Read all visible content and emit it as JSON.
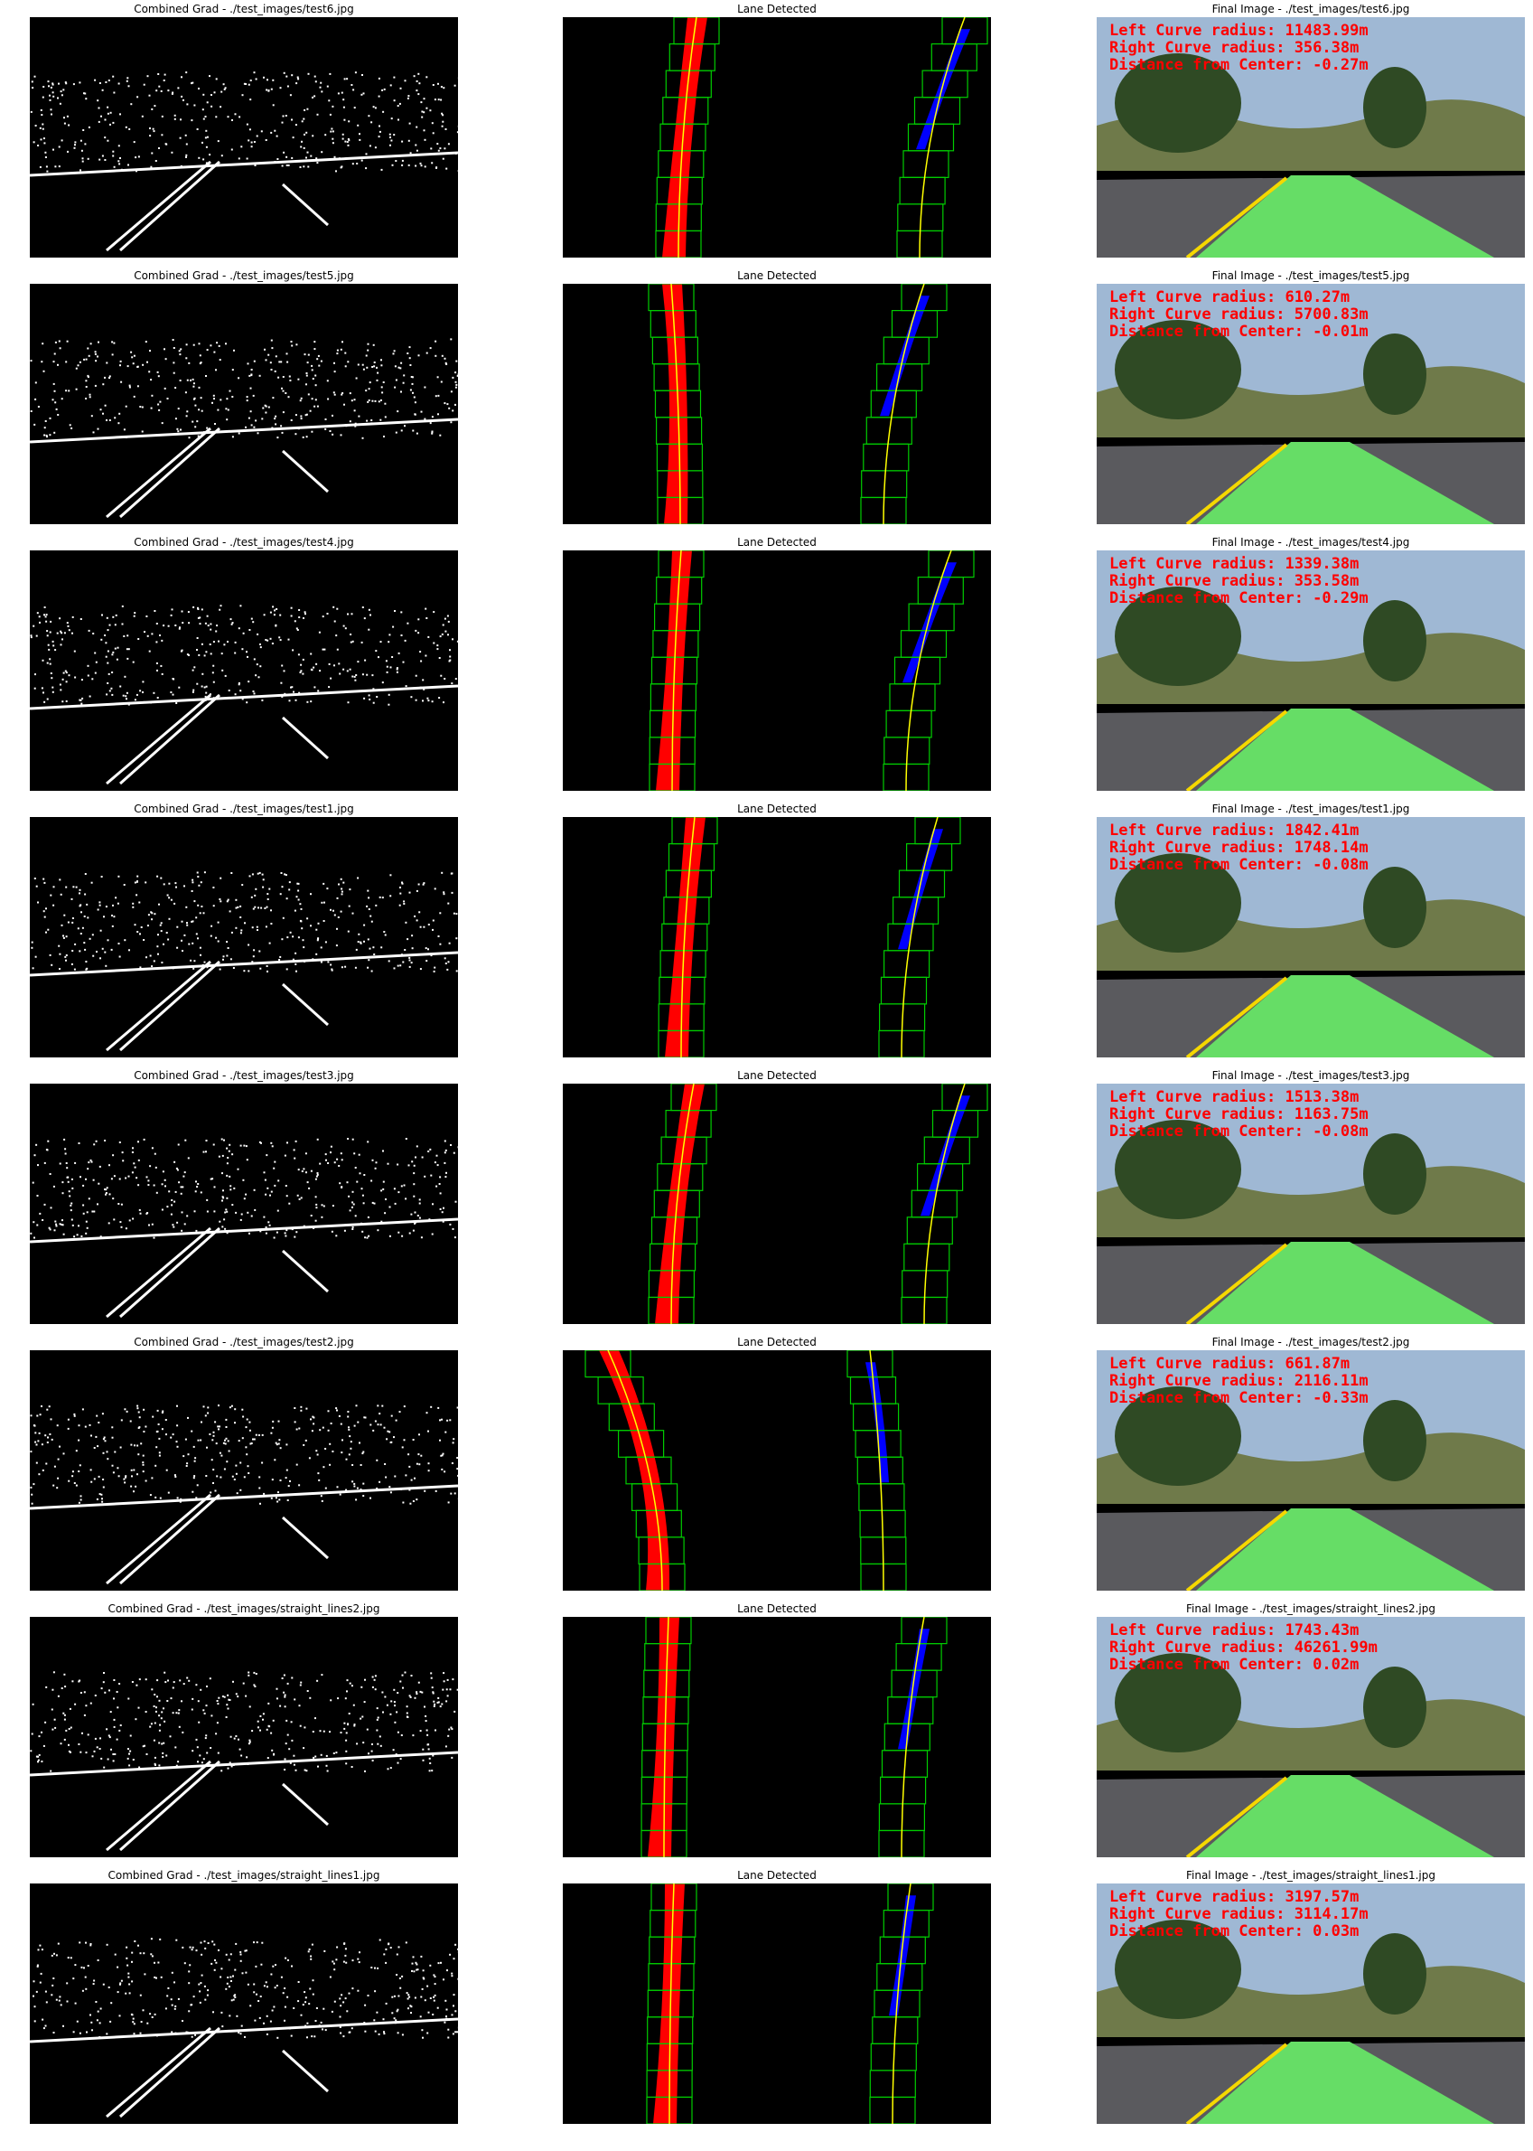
{
  "rows": [
    {
      "grad_title": "Combined Grad - ./test_images/test6.jpg",
      "lane_title": "Lane Detected",
      "final_title": "Final Image - ./test_images/test6.jpg",
      "left_radius": "Left Curve radius: 11483.99m",
      "right_radius": "Right Curve radius: 356.38m",
      "distance": "Distance from Center: -0.27m"
    },
    {
      "grad_title": "Combined Grad - ./test_images/test5.jpg",
      "lane_title": "Lane Detected",
      "final_title": "Final Image - ./test_images/test5.jpg",
      "left_radius": "Left Curve radius: 610.27m",
      "right_radius": "Right Curve radius: 5700.83m",
      "distance": "Distance from Center: -0.01m"
    },
    {
      "grad_title": "Combined Grad - ./test_images/test4.jpg",
      "lane_title": "Lane Detected",
      "final_title": "Final Image - ./test_images/test4.jpg",
      "left_radius": "Left Curve radius: 1339.38m",
      "right_radius": "Right Curve radius: 353.58m",
      "distance": "Distance from Center: -0.29m"
    },
    {
      "grad_title": "Combined Grad - ./test_images/test1.jpg",
      "lane_title": "Lane Detected",
      "final_title": "Final Image - ./test_images/test1.jpg",
      "left_radius": "Left Curve radius: 1842.41m",
      "right_radius": "Right Curve radius: 1748.14m",
      "distance": "Distance from Center: -0.08m"
    },
    {
      "grad_title": "Combined Grad - ./test_images/test3.jpg",
      "lane_title": "Lane Detected",
      "final_title": "Final Image - ./test_images/test3.jpg",
      "left_radius": "Left Curve radius: 1513.38m",
      "right_radius": "Right Curve radius: 1163.75m",
      "distance": "Distance from Center: -0.08m"
    },
    {
      "grad_title": "Combined Grad - ./test_images/test2.jpg",
      "lane_title": "Lane Detected",
      "final_title": "Final Image - ./test_images/test2.jpg",
      "left_radius": "Left Curve radius: 661.87m",
      "right_radius": "Right Curve radius: 2116.11m",
      "distance": "Distance from Center: -0.33m"
    },
    {
      "grad_title": "Combined Grad - ./test_images/straight_lines2.jpg",
      "lane_title": "Lane Detected",
      "final_title": "Final Image - ./test_images/straight_lines2.jpg",
      "left_radius": "Left Curve radius: 1743.43m",
      "right_radius": "Right Curve radius: 46261.99m",
      "distance": "Distance from Center: 0.02m"
    },
    {
      "grad_title": "Combined Grad - ./test_images/straight_lines1.jpg",
      "lane_title": "Lane Detected",
      "final_title": "Final Image - ./test_images/straight_lines1.jpg",
      "left_radius": "Left Curve radius: 3197.57m",
      "right_radius": "Right Curve radius: 3114.17m",
      "distance": "Distance from Center: 0.03m"
    }
  ],
  "colors": {
    "overlay_text": "#ff0000",
    "left_lane_pixels": "#ff0000",
    "right_lane_pixels": "#0000ff",
    "sliding_window": "#00cc00",
    "fit_line": "#ffff00",
    "lane_fill": "#66dd66",
    "left_lane_marking": "#f5d800"
  }
}
